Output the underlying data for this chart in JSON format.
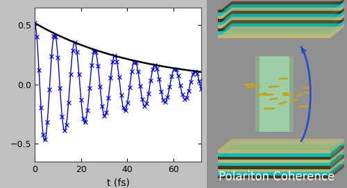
{
  "xlim": [
    0,
    72
  ],
  "ylim": [
    -0.65,
    0.65
  ],
  "xticks": [
    0,
    20,
    40,
    60
  ],
  "yticks": [
    -0.5,
    0.0,
    0.5
  ],
  "xlabel": "t (fs)",
  "plot_bg": "#ffffff",
  "fig_bg": "#c0c0c0",
  "oscillation_color": "#0000ee",
  "envelope_color": "#000000",
  "oscillation_freq_rad": 0.725,
  "envelope_decay": 0.022,
  "initial_amplitude": 0.52,
  "t_max": 72,
  "n_points": 400,
  "marker_size": 4,
  "line_width": 1.0,
  "envelope_lw": 1.8,
  "polariton_text": "Polariton Coherence",
  "text_color": "#ffffff",
  "text_fontsize": 12,
  "right_bg": "#888888",
  "mirror_dark": "#3d2f10",
  "mirror_cyan": "#00cccc",
  "mirror_tan": "#c8b870",
  "pillar_color": "#aaddaa",
  "molecule_color": "#c8a020",
  "blue_arc_color": "#2244cc"
}
